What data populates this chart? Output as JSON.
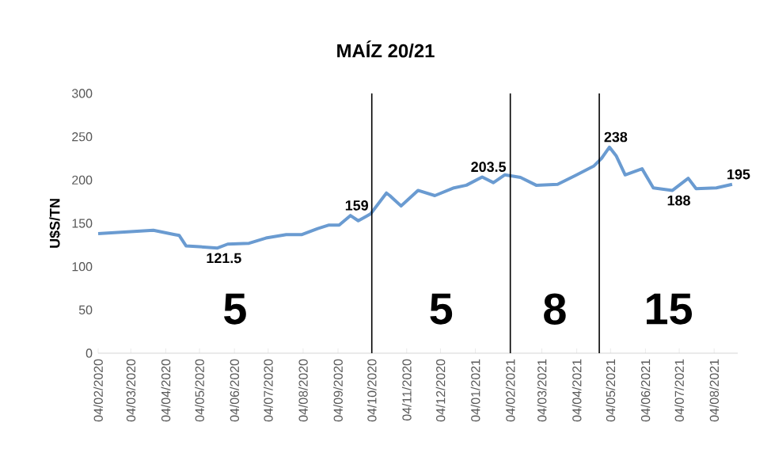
{
  "chart_data": {
    "type": "line",
    "title": "MAÍZ 20/21",
    "ylabel": "U$S/TN",
    "x": [
      "2020-02-04",
      "2020-03-24",
      "2020-04-12",
      "2020-04-16",
      "2020-04-22",
      "2020-05-20",
      "2020-05-29",
      "2020-06-17",
      "2020-07-02",
      "2020-07-20",
      "2020-08-03",
      "2020-08-17",
      "2020-08-27",
      "2020-09-05",
      "2020-09-15",
      "2020-09-22",
      "2020-09-29",
      "2020-10-03",
      "2020-10-17",
      "2020-10-20",
      "2020-10-30",
      "2020-11-14",
      "2020-11-29",
      "2020-12-16",
      "2020-12-27",
      "2021-01-10",
      "2021-01-20",
      "2021-01-30",
      "2021-02-13",
      "2021-02-27",
      "2021-03-18",
      "2021-04-04",
      "2021-04-19",
      "2021-04-26",
      "2021-05-03",
      "2021-05-09",
      "2021-05-17",
      "2021-06-01",
      "2021-06-11",
      "2021-06-28",
      "2021-07-12",
      "2021-07-19",
      "2021-08-06",
      "2021-08-20"
    ],
    "series": [
      {
        "color": "#6a9bd1",
        "values": [
          138,
          142,
          137,
          136,
          124,
          121.5,
          126,
          127,
          133,
          137,
          137,
          144,
          148,
          148,
          159,
          153,
          158,
          161,
          185,
          182,
          170,
          188,
          182,
          191,
          194,
          203.5,
          197,
          206,
          203,
          194,
          195,
          206,
          216,
          225,
          238,
          228,
          206,
          213,
          191,
          188,
          202,
          190,
          191,
          195
        ]
      }
    ],
    "xlim": [
      "2020-02-04",
      "2021-08-25"
    ],
    "xticks": [
      {
        "value": "2020-02-04",
        "label": "04/02/2020"
      },
      {
        "value": "2020-03-04",
        "label": "04/03/2020"
      },
      {
        "value": "2020-04-04",
        "label": "04/04/2020"
      },
      {
        "value": "2020-05-04",
        "label": "04/05/2020"
      },
      {
        "value": "2020-06-04",
        "label": "04/06/2020"
      },
      {
        "value": "2020-07-04",
        "label": "04/07/2020"
      },
      {
        "value": "2020-08-04",
        "label": "04/08/2020"
      },
      {
        "value": "2020-09-04",
        "label": "04/09/2020"
      },
      {
        "value": "2020-10-04",
        "label": "04/10/2020"
      },
      {
        "value": "2020-11-04",
        "label": "04/11/2020"
      },
      {
        "value": "2020-12-04",
        "label": "04/12/2020"
      },
      {
        "value": "2021-01-04",
        "label": "04/01/2021"
      },
      {
        "value": "2021-02-04",
        "label": "04/02/2021"
      },
      {
        "value": "2021-03-04",
        "label": "04/03/2021"
      },
      {
        "value": "2021-04-04",
        "label": "04/04/2021"
      },
      {
        "value": "2021-05-04",
        "label": "04/05/2021"
      },
      {
        "value": "2021-06-04",
        "label": "04/06/2021"
      },
      {
        "value": "2021-07-04",
        "label": "04/07/2021"
      },
      {
        "value": "2021-08-04",
        "label": "04/08/2021"
      }
    ],
    "ylim": [
      0,
      300
    ],
    "yticks": [
      0,
      50,
      100,
      150,
      200,
      250,
      300
    ],
    "grid": false,
    "marker": "none",
    "line_style": "solid",
    "ref_lines": [
      {
        "axis": "x",
        "value": "2020-10-04",
        "label": null,
        "color": "#000000"
      },
      {
        "axis": "x",
        "value": "2021-02-04",
        "label": null,
        "color": "#000000"
      },
      {
        "axis": "x",
        "value": "2021-04-24",
        "label": null,
        "color": "#000000"
      }
    ],
    "annotations": [
      "5",
      "5",
      "8",
      "15",
      {
        "text": "121.5",
        "x": "2020-05-20",
        "y": 121.5
      },
      {
        "text": "159",
        "x": "2020-09-15",
        "y": 159
      },
      {
        "text": "203.5",
        "x": "2021-01-10",
        "y": 203.5
      },
      {
        "text": "238",
        "x": "2021-05-03",
        "y": 238
      },
      {
        "text": "188",
        "x": "2021-06-28",
        "y": 188
      },
      {
        "text": "195",
        "x": "2021-08-20",
        "y": 195
      }
    ]
  }
}
